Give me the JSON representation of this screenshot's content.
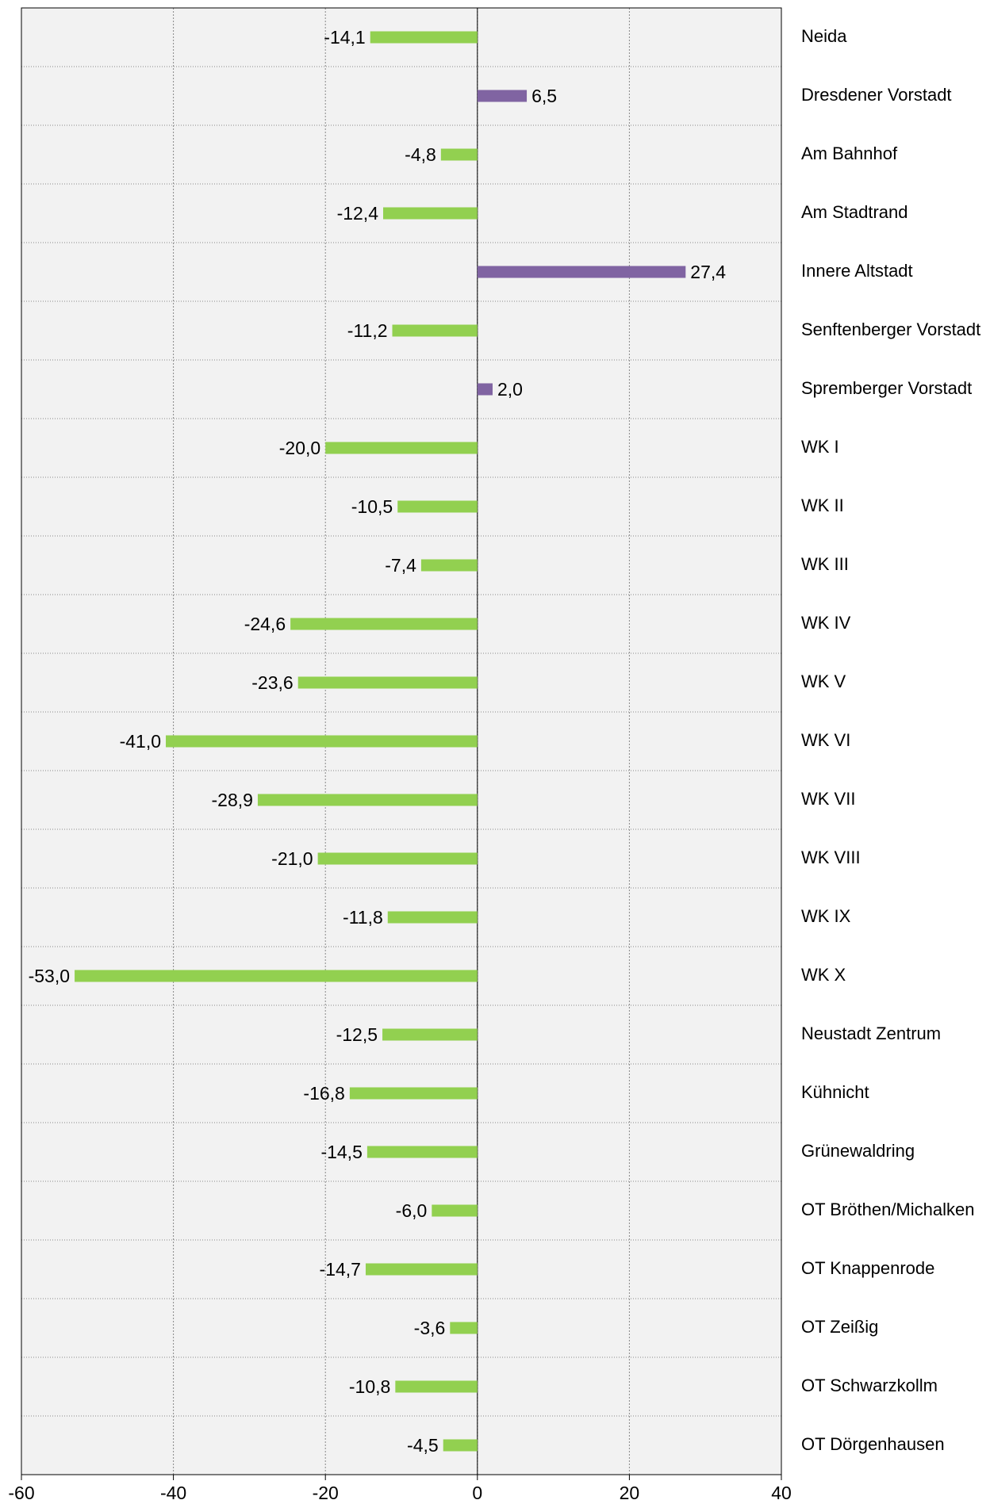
{
  "chart_data": {
    "type": "bar",
    "orientation": "horizontal",
    "categories": [
      "Neida",
      "Dresdener Vorstadt",
      "Am Bahnhof",
      "Am Stadtrand",
      "Innere Altstadt",
      "Senftenberger Vorstadt",
      "Spremberger Vorstadt",
      "WK I",
      "WK II",
      "WK III",
      "WK IV",
      "WK V",
      "WK VI",
      "WK VII",
      "WK VIII",
      "WK IX",
      "WK X",
      "Neustadt Zentrum",
      "Kühnicht",
      "Grünewaldring",
      "OT Bröthen/Michalken",
      "OT Knappenrode",
      "OT Zeißig",
      "OT Schwarzkollm",
      "OT Dörgenhausen"
    ],
    "values": [
      -14.1,
      6.5,
      -4.8,
      -12.4,
      27.4,
      -11.2,
      2.0,
      -20.0,
      -10.5,
      -7.4,
      -24.6,
      -23.6,
      -41.0,
      -28.9,
      -21.0,
      -11.8,
      -53.0,
      -12.5,
      -16.8,
      -14.5,
      -6.0,
      -14.7,
      -3.6,
      -10.8,
      -4.5
    ],
    "value_labels": [
      "-14,1",
      "6,5",
      "-4,8",
      "-12,4",
      "27,4",
      "-11,2",
      "2,0",
      "-20,0",
      "-10,5",
      "-7,4",
      "-24,6",
      "-23,6",
      "-41,0",
      "-28,9",
      "-21,0",
      "-11,8",
      "-53,0",
      "-12,5",
      "-16,8",
      "-14,5",
      "-6,0",
      "-14,7",
      "-3,6",
      "-10,8",
      "-4,5"
    ],
    "positive_color": "#8064a2",
    "negative_color": "#92d050",
    "xlim": [
      -60,
      40
    ],
    "xticks": [
      -60,
      -40,
      -20,
      0,
      20,
      40
    ],
    "grid": true
  }
}
